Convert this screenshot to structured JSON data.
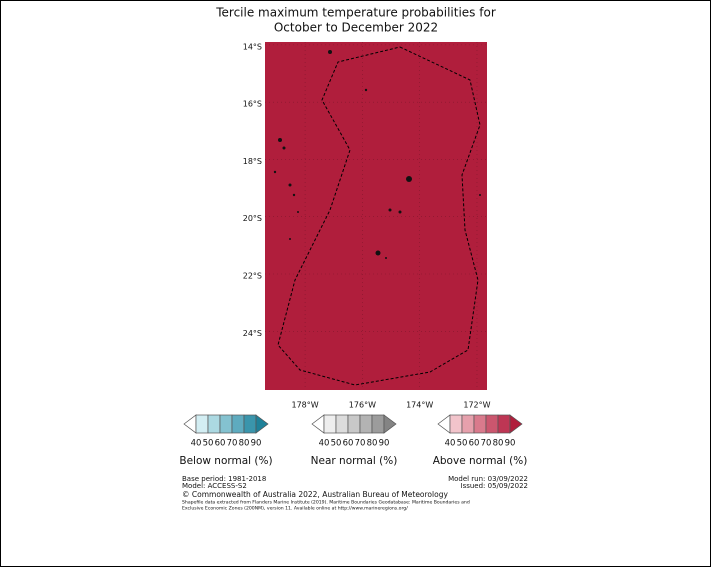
{
  "map": {
    "title": [
      "Tercile maximum temperature probabilities for",
      "October to December 2022"
    ],
    "lonlim": [
      -179.4,
      -171.65
    ],
    "latlim": [
      -26.05,
      -13.9
    ],
    "fill_color": "#b01e3c",
    "lat_ticks": [
      {
        "value": -14,
        "label": "14°S"
      },
      {
        "value": -16,
        "label": "16°S"
      },
      {
        "value": -18,
        "label": "18°S"
      },
      {
        "value": -20,
        "label": "20°S"
      },
      {
        "value": -22,
        "label": "22°S"
      },
      {
        "value": -24,
        "label": "24°S"
      }
    ],
    "lon_ticks": [
      {
        "value": -178,
        "label": "178°W"
      },
      {
        "value": -176,
        "label": "176°W"
      },
      {
        "value": -174,
        "label": "174°W"
      },
      {
        "value": -172,
        "label": "172°W"
      }
    ],
    "grid": true,
    "colorbars": [
      {
        "name": "Below normal (%)",
        "ticks": [
          40,
          50,
          60,
          70,
          80,
          90
        ],
        "colors": [
          "#d3eef3",
          "#acd9e2",
          "#84c2d0",
          "#5eabbf",
          "#3a95ac",
          "#1f8199"
        ]
      },
      {
        "name": "Near normal (%)",
        "ticks": [
          40,
          50,
          60,
          70,
          80,
          90
        ],
        "colors": [
          "#eeeeee",
          "#dcdcdc",
          "#c8c8c8",
          "#b3b3b3",
          "#9c9c9c",
          "#848484"
        ]
      },
      {
        "name": "Above normal (%)",
        "ticks": [
          40,
          50,
          60,
          70,
          80,
          90
        ],
        "colors": [
          "#f2c4cb",
          "#e6a0ac",
          "#d97a8c",
          "#cb566e",
          "#be3654",
          "#b01e3c"
        ]
      }
    ],
    "footer": {
      "left": [
        "Base period: 1981-2018",
        "Model: ACCESS-S2"
      ],
      "right": [
        "Model run: 03/09/2022",
        "Issued: 05/09/2022"
      ],
      "copyright": "© Commonwealth of Australia 2022, Australian Bureau of Meteorology",
      "shapefile": [
        "Shapefile data extracted from Flanders Marine Institute (2019). Maritime Boundaries Geodatabase: Maritime Boundaries and",
        "Exclusive Economic Zones (200NM), version 11. Available online at http://www.marineregions.org/"
      ]
    }
  }
}
